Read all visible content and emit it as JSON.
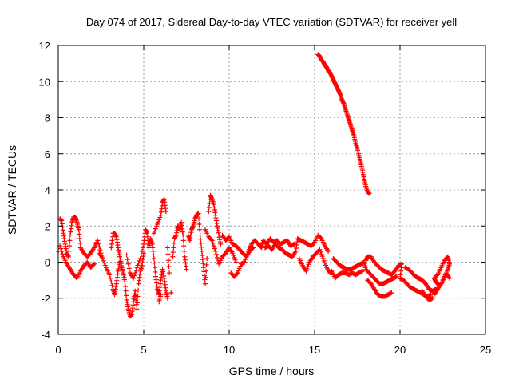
{
  "chart_data": {
    "type": "scatter",
    "title": "Day 074 of 2017, Sidereal Day-to-day VTEC variation (SDTVAR) for receiver yell",
    "xlabel": "GPS time / hours",
    "ylabel": "SDTVAR / TECUs",
    "xlim": [
      0,
      25
    ],
    "ylim": [
      -4,
      12
    ],
    "xticks": [
      0,
      5,
      10,
      15,
      20,
      25
    ],
    "yticks": [
      -4,
      -2,
      0,
      2,
      4,
      6,
      8,
      10,
      12
    ],
    "grid": true,
    "marker": "+",
    "color": "#ff0000",
    "series": [
      {
        "name": "SDTVAR",
        "points": [
          [
            0.0,
            0.6
          ],
          [
            0.1,
            2.4
          ],
          [
            0.2,
            2.3
          ],
          [
            0.3,
            1.6
          ],
          [
            0.4,
            1.0
          ],
          [
            0.5,
            0.5
          ],
          [
            0.6,
            0.3
          ],
          [
            0.7,
            1.5
          ],
          [
            0.8,
            2.2
          ],
          [
            0.9,
            2.5
          ],
          [
            1.0,
            2.5
          ],
          [
            1.1,
            2.2
          ],
          [
            1.2,
            1.8
          ],
          [
            1.3,
            0.8
          ],
          [
            1.5,
            0.5
          ],
          [
            1.7,
            0.3
          ],
          [
            1.9,
            0.5
          ],
          [
            2.1,
            0.8
          ],
          [
            2.3,
            1.2
          ],
          [
            2.5,
            0.5
          ],
          [
            0.1,
            0.9
          ],
          [
            0.3,
            0.3
          ],
          [
            0.5,
            -0.1
          ],
          [
            0.7,
            -0.4
          ],
          [
            0.9,
            -0.7
          ],
          [
            1.1,
            -0.9
          ],
          [
            1.3,
            -0.5
          ],
          [
            1.5,
            -0.2
          ],
          [
            1.7,
            0.0
          ],
          [
            1.9,
            -0.3
          ],
          [
            2.1,
            -0.1
          ],
          [
            2.4,
            0.5
          ],
          [
            2.6,
            0.2
          ],
          [
            2.8,
            -0.3
          ],
          [
            3.0,
            -0.7
          ],
          [
            3.2,
            -1.5
          ],
          [
            3.3,
            -1.8
          ],
          [
            3.4,
            -1.2
          ],
          [
            3.5,
            -0.5
          ],
          [
            3.6,
            0.0
          ],
          [
            3.1,
            0.8
          ],
          [
            3.2,
            1.6
          ],
          [
            3.3,
            1.6
          ],
          [
            3.4,
            1.4
          ],
          [
            3.5,
            0.8
          ],
          [
            3.6,
            0.3
          ],
          [
            3.7,
            -0.2
          ],
          [
            3.8,
            -0.6
          ],
          [
            3.9,
            -1.1
          ],
          [
            4.0,
            -2.1
          ],
          [
            4.1,
            -2.6
          ],
          [
            4.2,
            -3.0
          ],
          [
            4.3,
            -2.9
          ],
          [
            4.4,
            -2.2
          ],
          [
            4.5,
            -1.6
          ],
          [
            4.6,
            -2.6
          ],
          [
            4.7,
            -1.2
          ],
          [
            4.8,
            -0.5
          ],
          [
            4.9,
            -0.2
          ],
          [
            5.0,
            0.5
          ],
          [
            4.0,
            0.4
          ],
          [
            4.2,
            -0.6
          ],
          [
            4.4,
            -0.9
          ],
          [
            4.6,
            -0.3
          ],
          [
            4.8,
            0.2
          ],
          [
            5.0,
            1.0
          ],
          [
            5.1,
            1.8
          ],
          [
            5.2,
            1.6
          ],
          [
            5.3,
            0.8
          ],
          [
            5.4,
            1.3
          ],
          [
            5.5,
            1.0
          ],
          [
            5.6,
            0.2
          ],
          [
            5.7,
            -0.8
          ],
          [
            5.8,
            -1.5
          ],
          [
            5.9,
            -1.8
          ],
          [
            6.0,
            -1.0
          ],
          [
            6.1,
            -0.4
          ],
          [
            6.2,
            -0.9
          ],
          [
            6.3,
            -1.6
          ],
          [
            6.4,
            -2.0
          ],
          [
            5.6,
            1.6
          ],
          [
            5.8,
            2.1
          ],
          [
            6.0,
            2.6
          ],
          [
            6.1,
            3.3
          ],
          [
            6.2,
            3.5
          ],
          [
            6.3,
            2.8
          ],
          [
            6.4,
            0.8
          ],
          [
            6.5,
            -0.6
          ],
          [
            6.0,
            -1.8
          ],
          [
            5.9,
            -2.2
          ],
          [
            6.6,
            -1.7
          ],
          [
            6.7,
            0.3
          ],
          [
            6.8,
            1.3
          ],
          [
            6.9,
            1.5
          ],
          [
            7.0,
            2.0
          ],
          [
            7.1,
            1.8
          ],
          [
            7.2,
            2.2
          ],
          [
            7.3,
            1.5
          ],
          [
            7.4,
            0.3
          ],
          [
            7.5,
            -0.4
          ],
          [
            7.6,
            1.5
          ],
          [
            7.7,
            1.2
          ],
          [
            7.8,
            1.8
          ],
          [
            7.9,
            2.0
          ],
          [
            8.0,
            2.4
          ],
          [
            8.1,
            2.6
          ],
          [
            8.2,
            2.7
          ],
          [
            8.3,
            1.5
          ],
          [
            8.4,
            0.6
          ],
          [
            8.5,
            -0.3
          ],
          [
            8.6,
            -1.2
          ],
          [
            8.7,
            0.2
          ],
          [
            8.8,
            2.8
          ],
          [
            8.9,
            3.7
          ],
          [
            9.0,
            3.5
          ],
          [
            9.1,
            3.2
          ],
          [
            9.2,
            2.6
          ],
          [
            9.3,
            2.0
          ],
          [
            9.4,
            1.5
          ],
          [
            9.5,
            1.0
          ],
          [
            8.6,
            1.8
          ],
          [
            8.8,
            1.4
          ],
          [
            9.0,
            1.2
          ],
          [
            9.2,
            0.6
          ],
          [
            9.4,
            -0.1
          ],
          [
            9.6,
            0.3
          ],
          [
            9.8,
            0.5
          ],
          [
            10.0,
            0.8
          ],
          [
            10.2,
            0.5
          ],
          [
            10.4,
            0.0
          ],
          [
            9.6,
            1.5
          ],
          [
            9.8,
            1.2
          ],
          [
            10.0,
            1.4
          ],
          [
            10.2,
            1.0
          ],
          [
            10.4,
            0.9
          ],
          [
            10.6,
            0.7
          ],
          [
            10.8,
            0.5
          ],
          [
            11.0,
            0.3
          ],
          [
            11.2,
            0.6
          ],
          [
            11.4,
            0.8
          ],
          [
            10.1,
            -0.6
          ],
          [
            10.3,
            -0.8
          ],
          [
            10.5,
            -0.6
          ],
          [
            10.7,
            -0.1
          ],
          [
            10.9,
            0.0
          ],
          [
            11.1,
            0.6
          ],
          [
            11.3,
            1.0
          ],
          [
            11.5,
            1.2
          ],
          [
            11.7,
            1.0
          ],
          [
            11.9,
            0.8
          ],
          [
            12.0,
            1.2
          ],
          [
            12.2,
            1.0
          ],
          [
            12.4,
            1.3
          ],
          [
            12.6,
            1.1
          ],
          [
            12.8,
            1.2
          ],
          [
            13.0,
            1.0
          ],
          [
            13.2,
            1.1
          ],
          [
            13.4,
            1.2
          ],
          [
            13.6,
            0.9
          ],
          [
            13.8,
            1.0
          ],
          [
            12.1,
            0.8
          ],
          [
            12.3,
            0.9
          ],
          [
            12.5,
            0.7
          ],
          [
            12.7,
            1.0
          ],
          [
            12.9,
            0.8
          ],
          [
            13.1,
            0.7
          ],
          [
            13.3,
            0.5
          ],
          [
            13.5,
            0.4
          ],
          [
            13.7,
            0.3
          ],
          [
            13.9,
            0.6
          ],
          [
            14.0,
            1.3
          ],
          [
            14.2,
            1.2
          ],
          [
            14.4,
            1.1
          ],
          [
            14.6,
            1.0
          ],
          [
            14.8,
            0.9
          ],
          [
            15.0,
            1.1
          ],
          [
            15.2,
            1.5
          ],
          [
            15.4,
            1.3
          ],
          [
            15.6,
            0.9
          ],
          [
            15.8,
            0.6
          ],
          [
            14.1,
            0.2
          ],
          [
            14.3,
            -0.2
          ],
          [
            14.5,
            -0.5
          ],
          [
            14.7,
            0.0
          ],
          [
            14.9,
            0.3
          ],
          [
            15.1,
            0.5
          ],
          [
            15.3,
            0.7
          ],
          [
            15.5,
            0.2
          ],
          [
            15.7,
            -0.3
          ],
          [
            15.9,
            -0.6
          ],
          [
            16.0,
            -0.5
          ],
          [
            16.2,
            -0.9
          ],
          [
            16.4,
            -0.7
          ],
          [
            16.6,
            -0.6
          ],
          [
            16.8,
            -0.6
          ],
          [
            17.0,
            -0.7
          ],
          [
            17.2,
            -0.6
          ],
          [
            17.4,
            -0.7
          ],
          [
            17.6,
            -0.6
          ],
          [
            17.8,
            -0.5
          ],
          [
            16.1,
            0.2
          ],
          [
            16.3,
            0.0
          ],
          [
            16.5,
            -0.2
          ],
          [
            16.7,
            -0.3
          ],
          [
            16.9,
            -0.4
          ],
          [
            17.1,
            -0.4
          ],
          [
            17.3,
            -0.3
          ],
          [
            17.5,
            -0.2
          ],
          [
            17.7,
            -0.1
          ],
          [
            17.9,
            0.0
          ],
          [
            18.0,
            -0.4
          ],
          [
            18.2,
            -0.6
          ],
          [
            18.4,
            -0.8
          ],
          [
            18.6,
            -1.0
          ],
          [
            18.8,
            -1.2
          ],
          [
            19.0,
            -1.2
          ],
          [
            19.2,
            -1.1
          ],
          [
            19.4,
            -1.0
          ],
          [
            19.6,
            -0.9
          ],
          [
            19.8,
            -0.8
          ],
          [
            18.1,
            -1.0
          ],
          [
            18.3,
            -1.2
          ],
          [
            18.5,
            -1.5
          ],
          [
            18.7,
            -1.8
          ],
          [
            18.9,
            -1.9
          ],
          [
            19.1,
            -1.9
          ],
          [
            19.3,
            -1.8
          ],
          [
            19.5,
            -1.7
          ],
          [
            18.0,
            0.1
          ],
          [
            18.1,
            0.3
          ],
          [
            18.3,
            0.3
          ],
          [
            18.5,
            0.0
          ],
          [
            18.7,
            -0.2
          ],
          [
            18.9,
            -0.4
          ],
          [
            19.1,
            -0.5
          ],
          [
            19.3,
            -0.6
          ],
          [
            19.5,
            -0.7
          ],
          [
            19.7,
            -0.5
          ],
          [
            19.9,
            -0.2
          ],
          [
            20.1,
            -0.1
          ],
          [
            20.0,
            -0.9
          ],
          [
            20.2,
            -1.0
          ],
          [
            20.4,
            -1.2
          ],
          [
            20.6,
            -1.4
          ],
          [
            20.8,
            -1.5
          ],
          [
            21.0,
            -1.6
          ],
          [
            21.2,
            -1.7
          ],
          [
            21.4,
            -1.8
          ],
          [
            21.6,
            -1.9
          ],
          [
            21.8,
            -1.8
          ],
          [
            20.3,
            -0.3
          ],
          [
            20.5,
            -0.4
          ],
          [
            20.7,
            -0.6
          ],
          [
            20.9,
            -0.8
          ],
          [
            21.1,
            -0.9
          ],
          [
            21.3,
            -1.0
          ],
          [
            21.5,
            -1.2
          ],
          [
            21.7,
            -1.5
          ],
          [
            21.9,
            -1.6
          ],
          [
            22.1,
            -1.5
          ],
          [
            22.0,
            -1.8
          ],
          [
            22.2,
            -1.5
          ],
          [
            22.4,
            -1.2
          ],
          [
            22.6,
            -0.8
          ],
          [
            22.8,
            -0.4
          ],
          [
            22.9,
            -0.1
          ],
          [
            22.8,
            0.3
          ],
          [
            22.6,
            0.1
          ],
          [
            22.4,
            -0.3
          ],
          [
            22.2,
            -0.7
          ],
          [
            22.0,
            -0.9
          ],
          [
            22.1,
            -1.1
          ],
          [
            22.3,
            -1.3
          ],
          [
            22.5,
            -1.1
          ],
          [
            22.7,
            -0.6
          ],
          [
            22.9,
            -0.9
          ],
          [
            21.9,
            -2.0
          ],
          [
            21.7,
            -2.1
          ],
          [
            21.5,
            -1.9
          ],
          [
            21.3,
            -1.6
          ],
          [
            15.2,
            11.5
          ],
          [
            15.3,
            11.4
          ],
          [
            15.4,
            11.2
          ],
          [
            15.5,
            11.1
          ],
          [
            15.6,
            10.9
          ],
          [
            15.7,
            10.8
          ],
          [
            15.8,
            10.6
          ],
          [
            15.9,
            10.5
          ],
          [
            16.0,
            10.3
          ],
          [
            16.1,
            10.1
          ],
          [
            16.2,
            9.9
          ],
          [
            16.3,
            9.7
          ],
          [
            16.4,
            9.5
          ],
          [
            16.5,
            9.3
          ],
          [
            16.6,
            9.0
          ],
          [
            16.7,
            8.8
          ],
          [
            16.8,
            8.5
          ],
          [
            16.9,
            8.2
          ],
          [
            17.0,
            7.9
          ],
          [
            17.1,
            7.6
          ],
          [
            17.2,
            7.3
          ],
          [
            17.3,
            7.0
          ],
          [
            17.4,
            6.6
          ],
          [
            17.5,
            6.3
          ],
          [
            17.6,
            5.9
          ],
          [
            17.7,
            5.5
          ],
          [
            17.8,
            5.1
          ],
          [
            17.9,
            4.6
          ],
          [
            18.0,
            4.2
          ],
          [
            18.1,
            3.9
          ],
          [
            18.2,
            3.8
          ]
        ]
      }
    ]
  }
}
